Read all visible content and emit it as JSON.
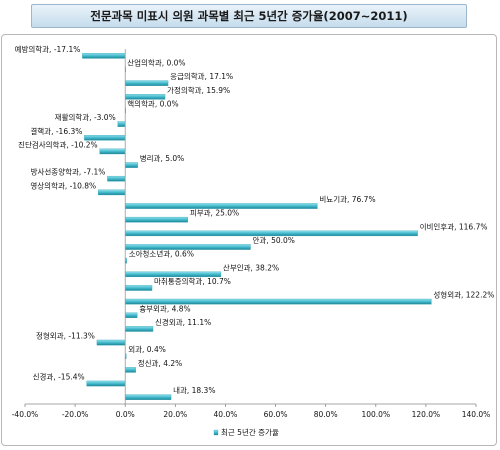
{
  "chart_data": {
    "type": "bar",
    "orientation": "horizontal",
    "title": "전문과목 미표시 의원 과목별 최근 5년간 증가율(2007~2011)",
    "categories": [
      "예방의학과",
      "산업의학과",
      "응급의학과",
      "가정의학과",
      "핵의학과",
      "재활의학과",
      "결핵과",
      "진단검사의학과",
      "병리과",
      "방사선종양학과",
      "영상의학과",
      "비뇨기과",
      "피부과",
      "이비인후과",
      "안과",
      "소아청소년과",
      "산부인과",
      "마취통증의학과",
      "성형외과",
      "흉부외과",
      "신경외과",
      "정형외과",
      "외과",
      "정신과",
      "신경과",
      "내과"
    ],
    "value_labels": [
      "-17.1%",
      "0.0%",
      "17.1%",
      "15.9%",
      "0.0%",
      "-3.0%",
      "-16.3%",
      "-10.2%",
      "5.0%",
      "-7.1%",
      "-10.8%",
      "76.7%",
      "25.0%",
      "116.7%",
      "50.0%",
      "0.6%",
      "38.2%",
      "10.7%",
      "122.2%",
      "4.8%",
      "11.1%",
      "-11.3%",
      "0.4%",
      "4.2%",
      "-15.4%",
      "18.3%"
    ],
    "series": [
      {
        "name": "최근 5년간 증가율",
        "values": [
          -17.1,
          0.0,
          17.1,
          15.9,
          0.0,
          -3.0,
          -16.3,
          -10.2,
          5.0,
          -7.1,
          -10.8,
          76.7,
          25.0,
          116.7,
          50.0,
          0.6,
          38.2,
          10.7,
          122.2,
          4.8,
          11.1,
          -11.3,
          0.4,
          4.2,
          -15.4,
          18.3
        ]
      }
    ],
    "xlim": [
      -40,
      140
    ],
    "xticks": [
      "-40.0%",
      "-20.0%",
      "0.0%",
      "20.0%",
      "40.0%",
      "60.0%",
      "80.0%",
      "100.0%",
      "120.0%",
      "140.0%"
    ],
    "legend": "bottom",
    "grid": false,
    "bar_color": "#3fb6c9"
  }
}
